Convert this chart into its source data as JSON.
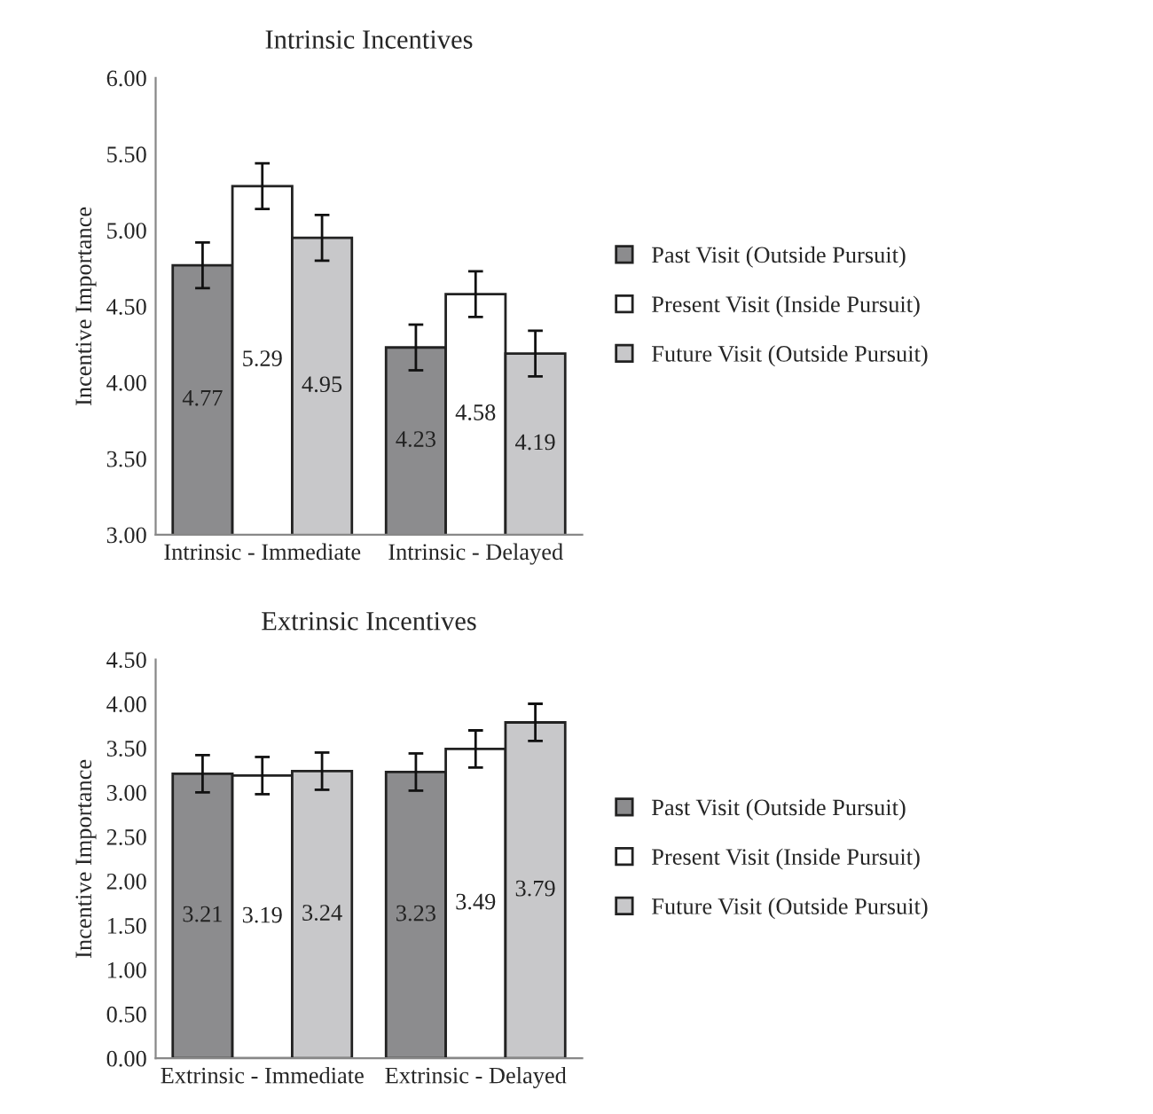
{
  "chart_data": [
    {
      "type": "bar",
      "title": "Intrinsic Incentives",
      "ylabel": "Incentive Importance",
      "categories": [
        "Intrinsic - Immediate",
        "Intrinsic - Delayed"
      ],
      "series": [
        {
          "name": "Past Visit (Outside Pursuit)",
          "color": "#8c8c8e",
          "values": [
            4.77,
            4.23
          ],
          "errors": [
            0.15,
            0.15
          ]
        },
        {
          "name": "Present Visit (Inside Pursuit)",
          "color": "#ffffff",
          "values": [
            5.29,
            4.58
          ],
          "errors": [
            0.15,
            0.15
          ]
        },
        {
          "name": "Future Visit (Outside Pursuit)",
          "color": "#c8c8ca",
          "values": [
            4.95,
            4.19
          ],
          "errors": [
            0.15,
            0.15
          ]
        }
      ],
      "ylim": [
        3.0,
        6.0
      ],
      "yticks": [
        {
          "value": 3.0,
          "label": "3.00"
        },
        {
          "value": 3.5,
          "label": "3.50"
        },
        {
          "value": 4.0,
          "label": "4.00"
        },
        {
          "value": 4.5,
          "label": "4.50"
        },
        {
          "value": 5.0,
          "label": "5.00"
        },
        {
          "value": 5.5,
          "label": "5.50"
        },
        {
          "value": 6.0,
          "label": "6.00"
        }
      ],
      "data_labels": true,
      "legend": "right"
    },
    {
      "type": "bar",
      "title": "Extrinsic Incentives",
      "ylabel": "Incentive Importance",
      "categories": [
        "Extrinsic - Immediate",
        "Extrinsic - Delayed"
      ],
      "series": [
        {
          "name": "Past Visit (Outside Pursuit)",
          "color": "#8c8c8e",
          "values": [
            3.21,
            3.23
          ],
          "errors": [
            0.21,
            0.21
          ]
        },
        {
          "name": "Present Visit (Inside Pursuit)",
          "color": "#ffffff",
          "values": [
            3.19,
            3.49
          ],
          "errors": [
            0.21,
            0.21
          ]
        },
        {
          "name": "Future Visit (Outside Pursuit)",
          "color": "#c8c8ca",
          "values": [
            3.24,
            3.79
          ],
          "errors": [
            0.21,
            0.21
          ]
        }
      ],
      "ylim": [
        0.0,
        4.5
      ],
      "yticks": [
        {
          "value": 0.0,
          "label": "0.00"
        },
        {
          "value": 0.5,
          "label": "0.50"
        },
        {
          "value": 1.0,
          "label": "1.00"
        },
        {
          "value": 1.5,
          "label": "1.50"
        },
        {
          "value": 2.0,
          "label": "2.00"
        },
        {
          "value": 2.5,
          "label": "2.50"
        },
        {
          "value": 3.0,
          "label": "3.00"
        },
        {
          "value": 3.5,
          "label": "3.50"
        },
        {
          "value": 4.0,
          "label": "4.00"
        },
        {
          "value": 4.5,
          "label": "4.50"
        }
      ],
      "data_labels": true,
      "legend": "right"
    }
  ]
}
